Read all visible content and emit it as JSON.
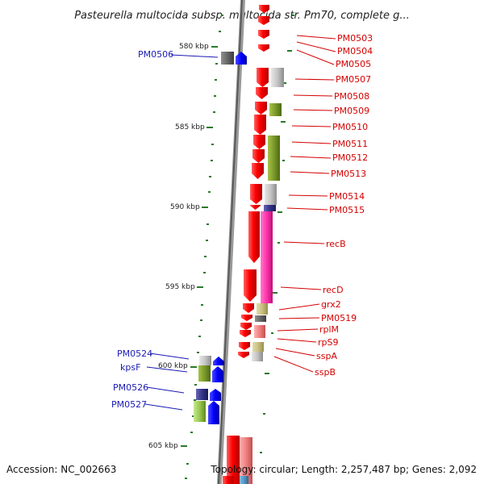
{
  "title": "Pasteurella multocida subsp. multocida str. Pm70, complete g...",
  "footer": {
    "accession": "Accession: NC_002663",
    "topology": "Topology: circular; Length: 2,257,487 bp; Genes: 2,092"
  },
  "scale": {
    "unit": "kbp",
    "ticks": [
      "580 kbp",
      "585 kbp",
      "590 kbp",
      "595 kbp",
      "600 kbp",
      "605 kbp"
    ]
  },
  "colors": {
    "forward_cds": "#ff0000",
    "reverse_cds": "#0000ff",
    "backbone": "#888888",
    "tick": "#2a7a2a",
    "label_red": "#d40000",
    "label_blue": "#1a1ab5",
    "cog_gray": "#c0c0c0",
    "cog_olive": "#7a9a2a",
    "cog_magenta": "#ff33aa",
    "cog_navy": "#333388",
    "cog_khaki": "#c8c080",
    "cog_salmon": "#f08080"
  },
  "right_labels": [
    "PM0503",
    "PM0504",
    "PM0505",
    "PM0507",
    "PM0508",
    "PM0509",
    "PM0510",
    "PM0511",
    "PM0512",
    "PM0513",
    "PM0514",
    "PM0515",
    "recB",
    "recD",
    "grx2",
    "PM0519",
    "rplM",
    "rpS9",
    "sspA",
    "sspB"
  ],
  "left_labels": [
    "PM0506",
    "PM0524",
    "kpsF",
    "PM0526",
    "PM0527"
  ]
}
